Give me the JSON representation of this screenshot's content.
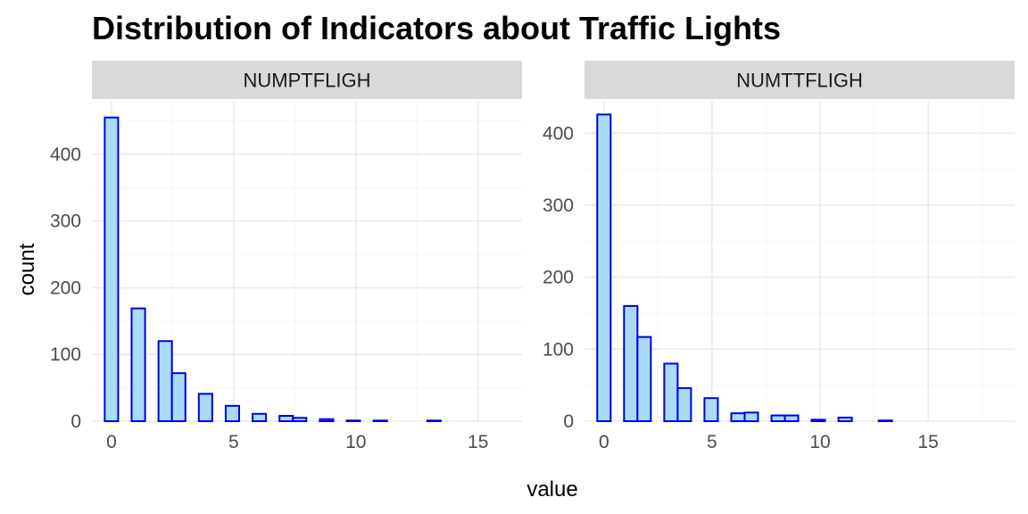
{
  "chart_data": {
    "type": "bar",
    "title": "Distribution of Indicators about Traffic Lights",
    "xlabel": "value",
    "ylabel": "count",
    "colors": {
      "fill": "#a9dbf4",
      "outline": "#0000e6",
      "strip": "#d9d9d9"
    },
    "grid": true,
    "panels": [
      {
        "name": "NUMPTFLIGH",
        "xlim": [
          -0.8,
          16.8
        ],
        "ylim": [
          0,
          480
        ],
        "x_ticks": [
          0,
          5,
          10,
          15
        ],
        "y_ticks": [
          0,
          100,
          200,
          300,
          400
        ],
        "bin_width": 0.55,
        "bins": [
          {
            "x": 0.0,
            "count": 455
          },
          {
            "x": 0.55,
            "count": 0
          },
          {
            "x": 1.1,
            "count": 169
          },
          {
            "x": 1.65,
            "count": 0
          },
          {
            "x": 2.2,
            "count": 120
          },
          {
            "x": 2.75,
            "count": 72
          },
          {
            "x": 3.3,
            "count": 0
          },
          {
            "x": 3.85,
            "count": 41
          },
          {
            "x": 4.4,
            "count": 0
          },
          {
            "x": 4.95,
            "count": 23
          },
          {
            "x": 5.5,
            "count": 0
          },
          {
            "x": 6.05,
            "count": 11
          },
          {
            "x": 6.6,
            "count": 0
          },
          {
            "x": 7.15,
            "count": 8
          },
          {
            "x": 7.7,
            "count": 5
          },
          {
            "x": 8.25,
            "count": 0
          },
          {
            "x": 8.8,
            "count": 3
          },
          {
            "x": 9.35,
            "count": 0
          },
          {
            "x": 9.9,
            "count": 1
          },
          {
            "x": 10.45,
            "count": 0
          },
          {
            "x": 11.0,
            "count": 1
          },
          {
            "x": 11.55,
            "count": 0
          },
          {
            "x": 12.1,
            "count": 0
          },
          {
            "x": 12.65,
            "count": 0
          },
          {
            "x": 13.2,
            "count": 1
          },
          {
            "x": 13.75,
            "count": 0
          },
          {
            "x": 14.3,
            "count": 0
          },
          {
            "x": 14.85,
            "count": 0
          },
          {
            "x": 15.4,
            "count": 0
          },
          {
            "x": 15.95,
            "count": 0
          }
        ]
      },
      {
        "name": "NUMTTFLIGH",
        "xlim": [
          -0.9,
          19.0
        ],
        "ylim": [
          0,
          445
        ],
        "x_ticks": [
          0,
          5,
          10,
          15
        ],
        "y_ticks": [
          0,
          100,
          200,
          300,
          400
        ],
        "bin_width": 0.62,
        "bins": [
          {
            "x": 0.0,
            "count": 426
          },
          {
            "x": 0.62,
            "count": 0
          },
          {
            "x": 1.24,
            "count": 160
          },
          {
            "x": 1.86,
            "count": 117
          },
          {
            "x": 2.48,
            "count": 0
          },
          {
            "x": 3.1,
            "count": 80
          },
          {
            "x": 3.72,
            "count": 46
          },
          {
            "x": 4.34,
            "count": 0
          },
          {
            "x": 4.96,
            "count": 32
          },
          {
            "x": 5.58,
            "count": 0
          },
          {
            "x": 6.2,
            "count": 11
          },
          {
            "x": 6.82,
            "count": 12
          },
          {
            "x": 7.44,
            "count": 0
          },
          {
            "x": 8.06,
            "count": 8
          },
          {
            "x": 8.68,
            "count": 8
          },
          {
            "x": 9.3,
            "count": 0
          },
          {
            "x": 9.92,
            "count": 2
          },
          {
            "x": 10.54,
            "count": 0
          },
          {
            "x": 11.16,
            "count": 5
          },
          {
            "x": 11.78,
            "count": 0
          },
          {
            "x": 12.4,
            "count": 0
          },
          {
            "x": 13.02,
            "count": 1
          },
          {
            "x": 13.64,
            "count": 0
          },
          {
            "x": 14.26,
            "count": 0
          },
          {
            "x": 14.88,
            "count": 0
          },
          {
            "x": 15.5,
            "count": 0
          },
          {
            "x": 16.12,
            "count": 0
          },
          {
            "x": 16.74,
            "count": 0
          },
          {
            "x": 17.36,
            "count": 0
          },
          {
            "x": 17.98,
            "count": 0
          }
        ]
      }
    ]
  }
}
